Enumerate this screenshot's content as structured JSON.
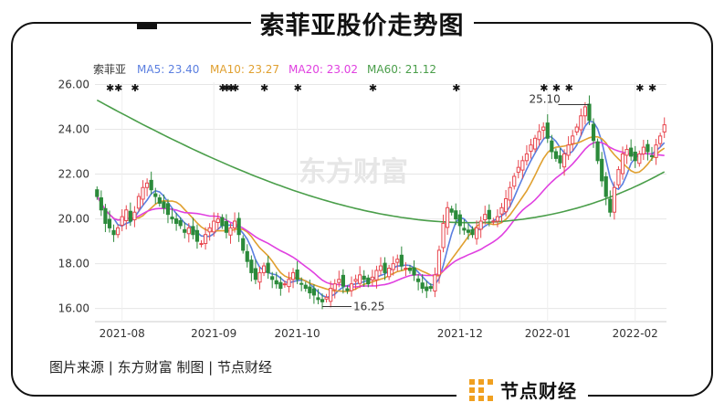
{
  "header": {
    "title": "索菲亚股价走势图"
  },
  "footer": {
    "source": "图片来源 | 东方财富  制图 | 节点财经",
    "brand": "节点财经"
  },
  "watermark": "东方财富",
  "colors": {
    "up": "#e8474f",
    "down": "#2b8a3a",
    "ma5": "#5b7fe0",
    "ma10": "#e0a030",
    "ma20": "#e040e0",
    "ma60": "#4a9e4a"
  },
  "chart_data": {
    "type": "candlestick",
    "stock_name": "索菲亚",
    "legend": [
      {
        "name": "MA5",
        "value": "23.40",
        "color": "#5b7fe0"
      },
      {
        "name": "MA10",
        "value": "23.27",
        "color": "#e0a030"
      },
      {
        "name": "MA20",
        "value": "23.02",
        "color": "#e040e0"
      },
      {
        "name": "MA60",
        "value": "21.12",
        "color": "#4a9e4a"
      }
    ],
    "ylim": [
      15.7,
      26.1
    ],
    "yticks": [
      "26.00",
      "24.00",
      "22.00",
      "20.00",
      "18.00",
      "16.00"
    ],
    "xticks": [
      "2021-08",
      "2021-09",
      "2021-10",
      "2021-12",
      "2022-01",
      "2022-02"
    ],
    "xtick_index": [
      6,
      28,
      48,
      87,
      108,
      129
    ],
    "max_label": "25.10",
    "max_index": 118,
    "min_label": "16.25",
    "min_index": 54,
    "close": [
      21.0,
      20.4,
      19.8,
      19.6,
      19.3,
      19.6,
      20.1,
      20.4,
      19.9,
      20.3,
      21.0,
      21.4,
      21.6,
      21.3,
      21.0,
      20.7,
      20.5,
      20.2,
      20.0,
      19.8,
      19.7,
      19.4,
      19.6,
      19.3,
      19.0,
      18.9,
      19.3,
      19.6,
      19.9,
      20.0,
      19.7,
      19.4,
      19.6,
      19.9,
      19.3,
      18.6,
      18.1,
      17.6,
      17.3,
      17.6,
      17.9,
      17.6,
      17.3,
      17.1,
      16.9,
      17.1,
      17.3,
      17.6,
      17.3,
      17.1,
      16.9,
      16.7,
      16.6,
      16.4,
      16.3,
      16.5,
      16.9,
      17.1,
      17.3,
      17.0,
      16.8,
      17.1,
      17.3,
      17.5,
      17.3,
      17.1,
      17.4,
      17.7,
      17.9,
      17.6,
      17.8,
      18.0,
      18.2,
      17.9,
      17.8,
      17.7,
      17.5,
      17.2,
      16.9,
      16.8,
      16.9,
      17.5,
      18.6,
      19.8,
      20.5,
      20.3,
      20.0,
      19.7,
      19.5,
      19.4,
      19.3,
      19.6,
      19.9,
      20.2,
      20.0,
      19.9,
      20.1,
      20.5,
      20.9,
      21.4,
      21.9,
      22.3,
      22.6,
      22.9,
      23.3,
      23.6,
      23.9,
      24.1,
      23.6,
      23.0,
      22.7,
      22.5,
      22.9,
      23.3,
      23.7,
      24.1,
      24.6,
      25.0,
      24.4,
      23.5,
      22.6,
      21.7,
      21.0,
      20.3,
      21.4,
      22.2,
      22.9,
      23.1,
      22.8,
      22.6,
      22.9,
      23.2,
      23.0,
      22.8,
      23.3,
      23.7,
      24.2
    ]
  }
}
